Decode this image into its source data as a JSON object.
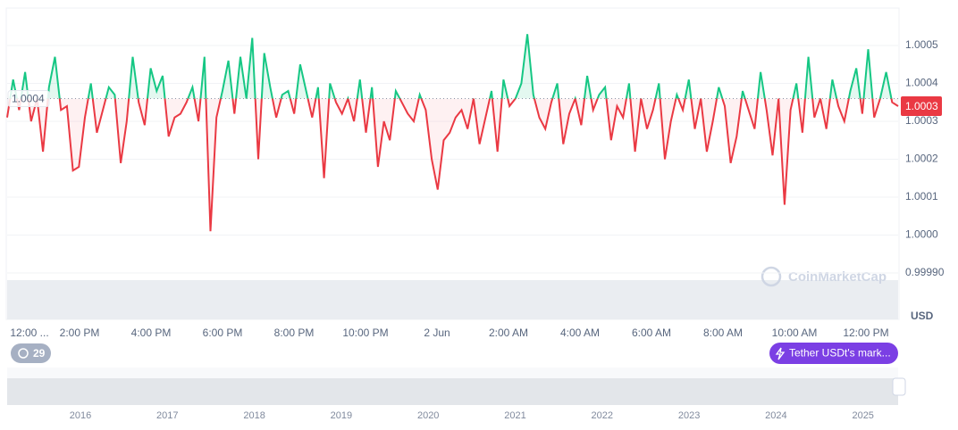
{
  "chart_data": {
    "type": "line",
    "values": [
      1.00031,
      1.00041,
      1.00033,
      1.00043,
      1.0003,
      1.00036,
      1.00022,
      1.00039,
      1.00047,
      1.00033,
      1.00034,
      1.00017,
      1.00018,
      1.00031,
      1.0004,
      1.00027,
      1.00033,
      1.00039,
      1.00037,
      1.00019,
      1.0003,
      1.00047,
      1.00035,
      1.00029,
      1.00044,
      1.00038,
      1.00042,
      1.00026,
      1.00031,
      1.00032,
      1.00035,
      1.00039,
      1.0003,
      1.00047,
      1.00001,
      1.00031,
      1.00038,
      1.00046,
      1.00032,
      1.00047,
      1.00036,
      1.00052,
      1.0002,
      1.00048,
      1.00039,
      1.00031,
      1.00037,
      1.00038,
      1.00032,
      1.00045,
      1.00038,
      1.00031,
      1.00039,
      1.00015,
      1.0004,
      1.00035,
      1.00032,
      1.00036,
      1.0003,
      1.00041,
      1.00027,
      1.00039,
      1.00018,
      1.0003,
      1.00025,
      1.00038,
      1.00035,
      1.00032,
      1.0003,
      1.00037,
      1.00033,
      1.0002,
      1.00012,
      1.00025,
      1.00027,
      1.00031,
      1.00033,
      1.00028,
      1.00036,
      1.00024,
      1.00031,
      1.00038,
      1.00022,
      1.00041,
      1.00034,
      1.00036,
      1.0004,
      1.00053,
      1.00037,
      1.00031,
      1.00028,
      1.00035,
      1.0004,
      1.00024,
      1.00032,
      1.00036,
      1.00029,
      1.00042,
      1.00033,
      1.00037,
      1.00039,
      1.00025,
      1.00034,
      1.00031,
      1.0004,
      1.00022,
      1.00036,
      1.00028,
      1.00033,
      1.0004,
      1.0002,
      1.0003,
      1.00037,
      1.00033,
      1.00041,
      1.00028,
      1.00036,
      1.00022,
      1.0003,
      1.00039,
      1.00034,
      1.00019,
      1.00026,
      1.00038,
      1.00033,
      1.00028,
      1.00043,
      1.00033,
      1.00021,
      1.00036,
      1.00008,
      1.00033,
      1.0004,
      1.00027,
      1.00047,
      1.00031,
      1.00036,
      1.00028,
      1.00041,
      1.00034,
      1.0003,
      1.00038,
      1.00044,
      1.00032,
      1.00049,
      1.00031,
      1.00036,
      1.00043,
      1.00035,
      1.00034
    ],
    "up_color": "#16c784",
    "down_color": "#ea3943",
    "ylim": [
      0.9999,
      1.0006
    ],
    "yticks": [
      {
        "value": 0.9999,
        "label": "0.99990"
      },
      {
        "value": 1.0,
        "label": "1.0000"
      },
      1.0001,
      1.0002,
      1.0003,
      1.0004,
      1.0005
    ],
    "grid": true,
    "baseline": {
      "value": 1.00036,
      "label": "1.0004"
    },
    "last_price": {
      "value": 1.00034,
      "label": "1.0003"
    },
    "y_unit": "USD",
    "x_labels": [
      "12:00 ...",
      "2:00 PM",
      "4:00 PM",
      "6:00 PM",
      "8:00 PM",
      "10:00 PM",
      "2 Jun",
      "2:00 AM",
      "4:00 AM",
      "6:00 AM",
      "8:00 AM",
      "10:00 AM",
      "12:00 PM"
    ],
    "navigator_years": [
      "2016",
      "2017",
      "2018",
      "2019",
      "2020",
      "2021",
      "2022",
      "2023",
      "2024",
      "2025"
    ],
    "watermark": "CoinMarketCap",
    "badge": "29",
    "button": "Tether USDt's mark..."
  }
}
